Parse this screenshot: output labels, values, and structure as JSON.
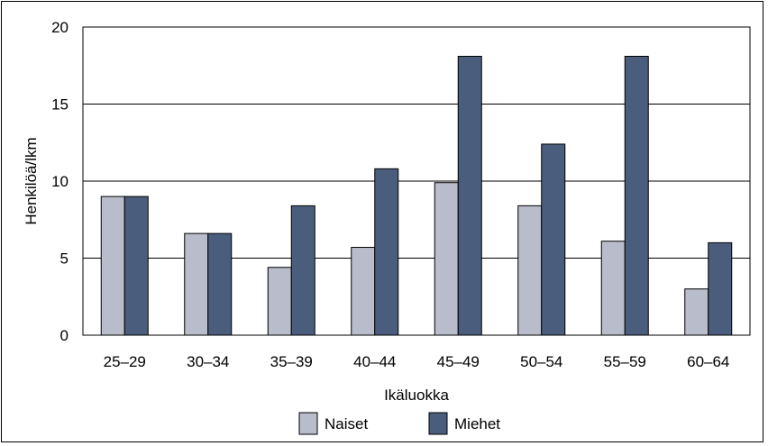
{
  "chart_data": {
    "type": "bar",
    "title": "",
    "xlabel": "Ikäluokka",
    "ylabel": "Henkilöä/lkm",
    "ylim": [
      0,
      20
    ],
    "yticks": [
      "0",
      "5",
      "10",
      "15",
      "20"
    ],
    "grid": true,
    "legend_position": "bottom",
    "categories": [
      "25–29",
      "30–34",
      "35–39",
      "40–44",
      "45–49",
      "50–54",
      "55–59",
      "60–64"
    ],
    "series": [
      {
        "name": "Naiset",
        "color": "#b9bccb",
        "values": [
          9,
          6.6,
          4.4,
          5.7,
          9.9,
          8.4,
          6.1,
          3
        ]
      },
      {
        "name": "Miehet",
        "color": "#4b5d7c",
        "values": [
          9,
          6.6,
          8.4,
          10.8,
          18.1,
          12.4,
          18.1,
          6
        ]
      }
    ]
  }
}
